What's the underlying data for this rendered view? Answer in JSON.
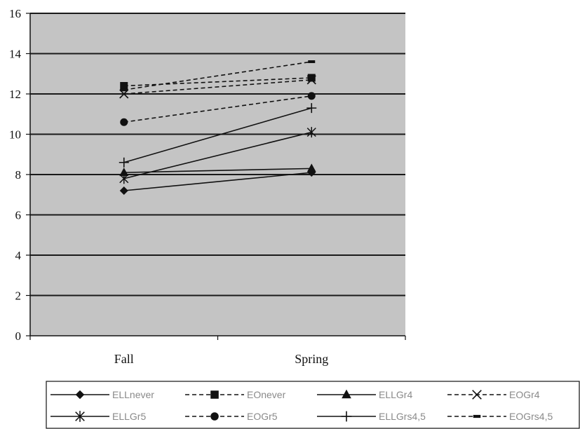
{
  "chart_data": {
    "type": "line",
    "categories": [
      "Fall",
      "Spring"
    ],
    "ylim": [
      0,
      16
    ],
    "yticks": [
      0,
      2,
      4,
      6,
      8,
      10,
      12,
      14,
      16
    ],
    "grid": true,
    "legend_position": "bottom",
    "series": [
      {
        "name": "ELLnever",
        "values": [
          7.2,
          8.1
        ],
        "marker": "diamond",
        "dashed": false
      },
      {
        "name": "EOnever",
        "values": [
          12.4,
          12.8
        ],
        "marker": "square",
        "dashed": true
      },
      {
        "name": "ELLGr4",
        "values": [
          8.1,
          8.3
        ],
        "marker": "triangle",
        "dashed": false
      },
      {
        "name": "EOGr4",
        "values": [
          12.0,
          12.7
        ],
        "marker": "x",
        "dashed": true
      },
      {
        "name": "ELLGr5",
        "values": [
          7.8,
          10.1
        ],
        "marker": "star",
        "dashed": false
      },
      {
        "name": "EOGr5",
        "values": [
          10.6,
          11.9
        ],
        "marker": "circle",
        "dashed": true
      },
      {
        "name": "ELLGrs4,5",
        "values": [
          8.6,
          11.3
        ],
        "marker": "plus",
        "dashed": false
      },
      {
        "name": "EOGrs4,5",
        "values": [
          12.2,
          13.6
        ],
        "marker": "dash",
        "dashed": true
      }
    ],
    "colors": {
      "plot_bg": "#c4c4c4",
      "grid": "#1a1a1a",
      "line": "#111111"
    }
  }
}
